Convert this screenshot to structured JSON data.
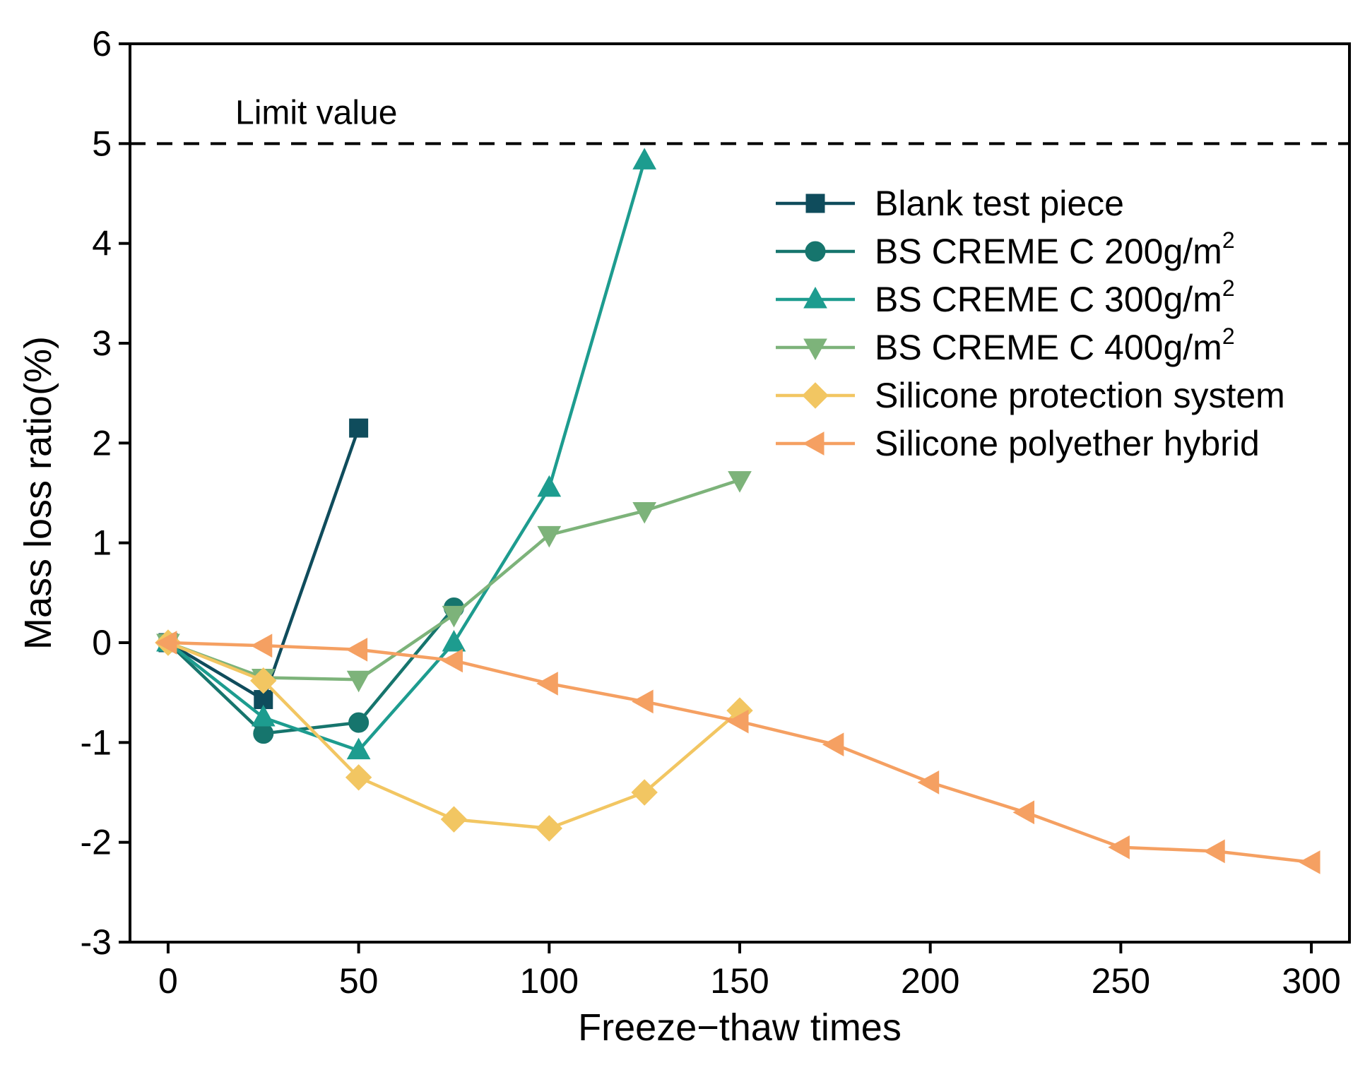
{
  "chart_data": {
    "type": "line",
    "title": "",
    "xlabel": "Freeze−thaw times",
    "ylabel": "Mass loss ratio(%)",
    "xlim": [
      -10,
      310
    ],
    "ylim": [
      -3,
      6
    ],
    "xticks": [
      0,
      50,
      100,
      150,
      200,
      250,
      300
    ],
    "yticks": [
      6,
      5,
      4,
      3,
      2,
      1,
      0,
      -1,
      -2,
      -3
    ],
    "legend_position": "top-right",
    "reference_line": {
      "y": 5,
      "label": "Limit value",
      "style": "dashed"
    },
    "series": [
      {
        "name": "Blank test piece",
        "label_main": "Blank test piece",
        "label_sup": "",
        "marker": "square",
        "color": "#0f4c5c",
        "x": [
          0,
          25,
          50
        ],
        "y": [
          0,
          -0.57,
          2.15
        ]
      },
      {
        "name": "BS CREME C 200g/m2",
        "label_main": "BS CREME C 200g/m",
        "label_sup": "2",
        "marker": "circle",
        "color": "#16756d",
        "x": [
          0,
          25,
          50,
          75
        ],
        "y": [
          0,
          -0.91,
          -0.8,
          0.35
        ]
      },
      {
        "name": "BS CREME C 300g/m2",
        "label_main": "BS CREME C 300g/m",
        "label_sup": "2",
        "marker": "triangle-up",
        "color": "#1d9c8f",
        "x": [
          0,
          25,
          50,
          75,
          100,
          125
        ],
        "y": [
          0,
          -0.75,
          -1.08,
          0.0,
          1.55,
          4.83
        ]
      },
      {
        "name": "BS CREME C 400g/m2",
        "label_main": "BS CREME C 400g/m",
        "label_sup": "2",
        "marker": "triangle-down",
        "color": "#7db37a",
        "x": [
          0,
          25,
          50,
          75,
          100,
          125,
          150
        ],
        "y": [
          0,
          -0.35,
          -0.37,
          0.28,
          1.08,
          1.32,
          1.63
        ]
      },
      {
        "name": "Silicone protection system",
        "label_main": "Silicone protection system",
        "label_sup": "",
        "marker": "diamond",
        "color": "#f2c662",
        "x": [
          0,
          25,
          50,
          75,
          100,
          125,
          150
        ],
        "y": [
          0,
          -0.38,
          -1.35,
          -1.77,
          -1.86,
          -1.5,
          -0.68
        ]
      },
      {
        "name": "Silicone polyether hybrid",
        "label_main": "Silicone polyether hybrid",
        "label_sup": "",
        "marker": "triangle-left",
        "color": "#f5a062",
        "x": [
          0,
          25,
          50,
          75,
          100,
          125,
          150,
          175,
          200,
          225,
          250,
          275,
          300
        ],
        "y": [
          0,
          -0.03,
          -0.07,
          -0.18,
          -0.41,
          -0.59,
          -0.79,
          -1.02,
          -1.4,
          -1.7,
          -2.05,
          -2.09,
          -2.2
        ]
      }
    ]
  }
}
